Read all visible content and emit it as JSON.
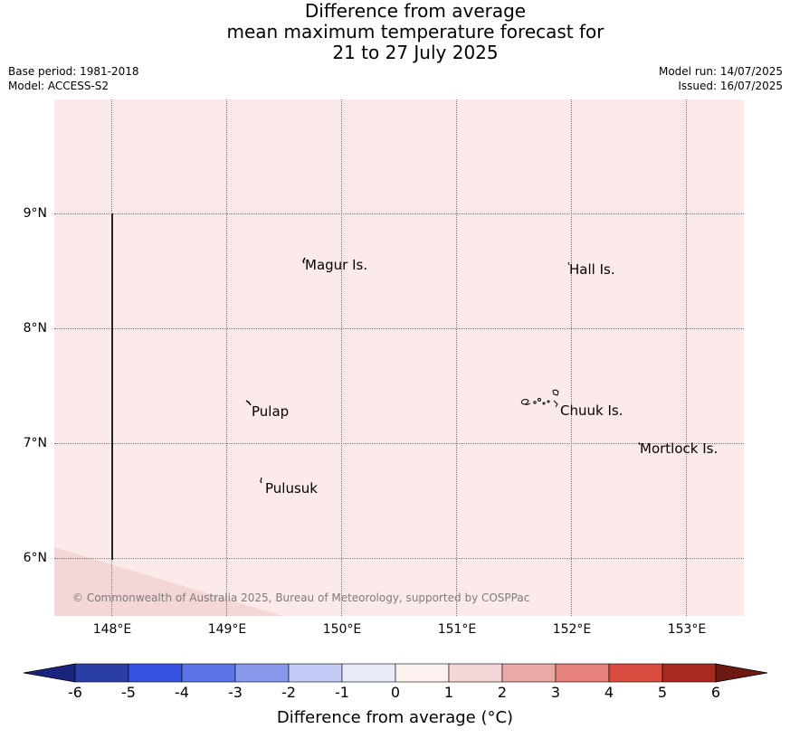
{
  "title": {
    "line1": "Difference from average",
    "line2": "mean maximum temperature forecast for",
    "line3": "21 to 27 July 2025"
  },
  "meta": {
    "base_period": "Base period: 1981-2018",
    "model": "Model: ACCESS-S2",
    "model_run": "Model run: 14/07/2025",
    "issued": "Issued: 16/07/2025"
  },
  "map": {
    "background_color": "#fbeae9",
    "lower_left_color": "#f3d6d5",
    "longitude_labels": [
      "148°E",
      "149°E",
      "150°E",
      "151°E",
      "152°E",
      "153°E"
    ],
    "latitude_labels": [
      "9°N",
      "8°N",
      "7°N",
      "6°N"
    ],
    "places": {
      "magur": "Magur Is.",
      "hall": "Hall Is.",
      "pulap": "Pulap",
      "chuuk": "Chuuk Is.",
      "mortlock": "Mortlock Is.",
      "pulusuk": "Pulusuk"
    },
    "copyright": "© Commonwealth of Australia 2025, Bureau of Meteorology, supported by COSPPac"
  },
  "colorbar": {
    "ticks": [
      "-6",
      "-5",
      "-4",
      "-3",
      "-2",
      "-1",
      "0",
      "1",
      "2",
      "3",
      "4",
      "5",
      "6"
    ],
    "min_extension_color": "#1a237e",
    "colors": [
      "#2b3ea6",
      "#3451e0",
      "#5c74e8",
      "#8899ec",
      "#c2cbf3",
      "#e8ecfa",
      "#fdf1f0",
      "#f3d6d5",
      "#eba9a6",
      "#e6817c",
      "#da4c40",
      "#a8291f"
    ],
    "max_extension_color": "#6e1a14",
    "label": "Difference from average (°C)"
  }
}
